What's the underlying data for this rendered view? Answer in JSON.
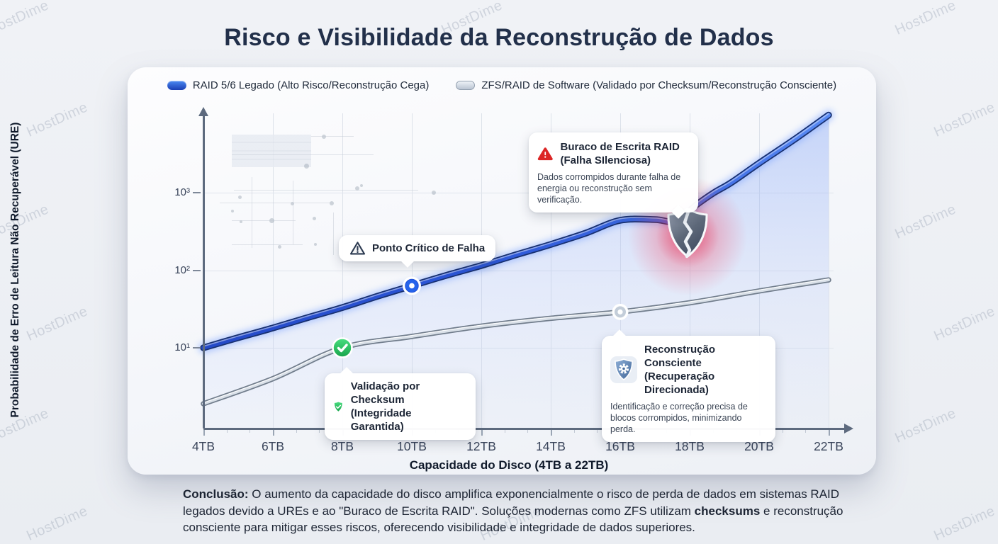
{
  "watermark": {
    "text": "HostDime"
  },
  "title": "Risco e Visibilidade da Reconstrução de Dados",
  "legend": {
    "items": [
      {
        "label": "RAID 5/6 Legado (Alto Risco/Reconstrução Cega)",
        "swatch": "pill-blue",
        "swatch_color": "#2158d6"
      },
      {
        "label": "ZFS/RAID de Software (Validado por Checksum/Reconstrução Consciente)",
        "swatch": "pill-gray",
        "swatch_color": "#c6cfdb"
      }
    ]
  },
  "axes": {
    "y_label": "Probabilidade de Erro de Leitura Não Recuperável (URE)",
    "x_label": "Capacidade do Disco (4TB a 22TB)",
    "x_ticks": [
      "4TB",
      "6TB",
      "8TB",
      "10TB",
      "12TB",
      "14TB",
      "16TB",
      "18TB",
      "20TB",
      "22TB"
    ],
    "y_ticks": [
      "10³",
      "10²",
      "10¹"
    ]
  },
  "callouts": {
    "ponto": {
      "icon": "triangle-alert-outline-icon",
      "title": "Ponto Crítico de Falha"
    },
    "buraco": {
      "icon": "triangle-alert-red-icon",
      "title": "Buraco de Escrita RAID (Falha SIlenciosa)",
      "body": "Dados corrompidos durante falha de energia ou reconstrução sem verificação."
    },
    "validacao": {
      "icon": "shield-check-icon",
      "title": "Validação por Checksum (Integridade Garantida)"
    },
    "reconstrucao": {
      "icon": "shield-gear-icon",
      "title": "Reconstrução Consciente (Recuperação Direcionada)",
      "body": "Identificação e correção precisa de blocos corrompidos, minimizando perda."
    }
  },
  "conclusion": {
    "label": "Conclusão:",
    "part1": " O aumento da capacidade do disco amplifica exponencialmente o risco de perda de dados em sistemas RAID legados devido a UREs e ao \"Buraco de Escrita RAID\". Soluções modernas como ZFS utilizam ",
    "bold": "checksums",
    "part2": " e reconstrução consciente para mitigar esses riscos, oferecendo visibilidade e integridade de dados superiores."
  },
  "colors": {
    "raid_line": "#1d4ed8",
    "zfs_line": "#94a3b8",
    "danger": "#dc2626",
    "success": "#22c55e",
    "info": "#3b82f6",
    "glow": "#f43f5e",
    "title_text": "#22304a"
  },
  "chart_data": {
    "type": "line",
    "title": "Risco e Visibilidade da Reconstrução de Dados",
    "xlabel": "Capacidade do Disco (4TB a 22TB)",
    "ylabel": "Probabilidade de Erro de Leitura Não Recuperável (URE)",
    "x_unit": "TB",
    "xlim": [
      4,
      22
    ],
    "y_scale": "log10",
    "ylim": [
      1,
      10000
    ],
    "x_ticks_tb": [
      4,
      6,
      8,
      10,
      12,
      14,
      16,
      18,
      20,
      22
    ],
    "y_gridlines": [
      1000,
      100,
      10
    ],
    "grid": true,
    "legend_position": "top",
    "series": [
      {
        "name": "RAID 5/6 Legado (Alto Risco/Reconstrução Cega)",
        "color": "#1d4ed8",
        "x": [
          4,
          5,
          6,
          7,
          8,
          9,
          10,
          11,
          12,
          13,
          14,
          15,
          16,
          17,
          17.6,
          18.2,
          18.7,
          19.2,
          20,
          21,
          22
        ],
        "values": [
          10,
          13.5,
          18,
          24.5,
          33,
          46,
          63,
          86,
          115,
          158,
          215,
          300,
          440,
          450,
          430,
          700,
          1000,
          1350,
          2400,
          4800,
          10000
        ]
      },
      {
        "name": "ZFS/RAID de Software (Validado por Checksum/Reconstrução Consciente)",
        "color": "#94a3b8",
        "x": [
          4,
          6,
          8,
          10,
          12,
          14,
          16,
          18,
          20,
          22
        ],
        "values": [
          1.9,
          4,
          10,
          14,
          19,
          24,
          29,
          38,
          54,
          75
        ]
      }
    ],
    "markers": [
      {
        "series": 0,
        "x": 10,
        "value": 63,
        "style": "blue-ring",
        "label": "Ponto Crítico de Falha"
      },
      {
        "series": 1,
        "x": 8,
        "value": 10,
        "style": "green-check",
        "label": "Validação por Checksum (Integridade Garantida)"
      },
      {
        "series": 1,
        "x": 16,
        "value": 29,
        "style": "gray-ring",
        "label": "Reconstrução Consciente (Recuperação Direcionada)"
      },
      {
        "series": 0,
        "x": 17.9,
        "value": 480,
        "style": "broken-shield",
        "label": "Buraco de Escrita RAID (Falha SIlenciosa)"
      }
    ]
  }
}
